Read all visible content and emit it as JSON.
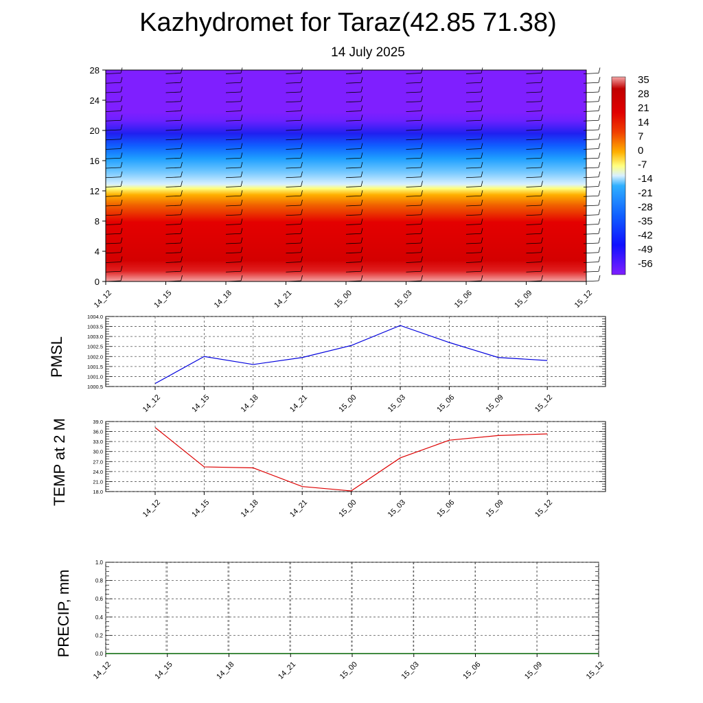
{
  "title": "Kazhydromet for Taraz(42.85 71.38)",
  "subtitle": "14 July 2025",
  "colors": {
    "pmsl": "#0000dd",
    "temp": "#dd0000",
    "precip": "#006400",
    "cross_section_top": "#7f1fff"
  },
  "chart_data": [
    {
      "type": "heatmap",
      "title": "",
      "xlabel": "",
      "ylabel": "",
      "x": [
        "14_12",
        "14_15",
        "14_18",
        "14_21",
        "15_00",
        "15_03",
        "15_06",
        "15_09",
        "15_12"
      ],
      "yticks": [
        0,
        4,
        8,
        12,
        16,
        20,
        24,
        28
      ],
      "ylim": [
        0,
        28
      ],
      "grid": false,
      "overlay": "wind barbs",
      "colorbar": {
        "labels": [
          "35",
          "28",
          "21",
          "14",
          "7",
          "0",
          "-7",
          "-14",
          "-21",
          "-28",
          "-35",
          "-42",
          "-49",
          "-56"
        ],
        "range": [
          -60,
          37
        ]
      }
    },
    {
      "type": "line",
      "title": "",
      "ylabel": "PMSL",
      "x": [
        "14_12",
        "14_15",
        "14_18",
        "14_21",
        "15_00",
        "15_03",
        "15_06",
        "15_09",
        "15_12"
      ],
      "yticks": [
        "1000.5",
        "1001.0",
        "1001.5",
        "1002.0",
        "1002.5",
        "1003.0",
        "1003.5",
        "1004.0"
      ],
      "ylim": [
        1000.5,
        1004.0
      ],
      "grid": true,
      "series": [
        {
          "values": [
            1000.65,
            1002.0,
            1001.6,
            1001.95,
            1002.55,
            1003.55,
            1002.7,
            1001.95,
            1001.8
          ]
        }
      ]
    },
    {
      "type": "line",
      "title": "",
      "ylabel": "TEMP at 2 M",
      "x": [
        "14_12",
        "14_15",
        "14_18",
        "14_21",
        "15_00",
        "15_03",
        "15_06",
        "15_09",
        "15_12"
      ],
      "yticks": [
        "18.0",
        "21.0",
        "24.0",
        "27.0",
        "30.0",
        "33.0",
        "36.0",
        "39.0"
      ],
      "ylim": [
        18.0,
        39.0
      ],
      "grid": true,
      "series": [
        {
          "values": [
            37.2,
            25.4,
            25.1,
            19.5,
            18.2,
            28.1,
            33.4,
            34.8,
            35.3
          ]
        }
      ]
    },
    {
      "type": "line",
      "title": "",
      "ylabel": "PRECIP, mm",
      "x": [
        "14_12",
        "14_15",
        "14_18",
        "14_21",
        "15_00",
        "15_03",
        "15_06",
        "15_09",
        "15_12"
      ],
      "yticks": [
        "0.0",
        "0.2",
        "0.4",
        "0.6",
        "0.8",
        "1.0"
      ],
      "ylim": [
        0.0,
        1.0
      ],
      "grid": true,
      "series": [
        {
          "values": [
            0,
            0,
            0,
            0,
            0,
            0,
            0,
            0,
            0
          ]
        }
      ]
    }
  ]
}
